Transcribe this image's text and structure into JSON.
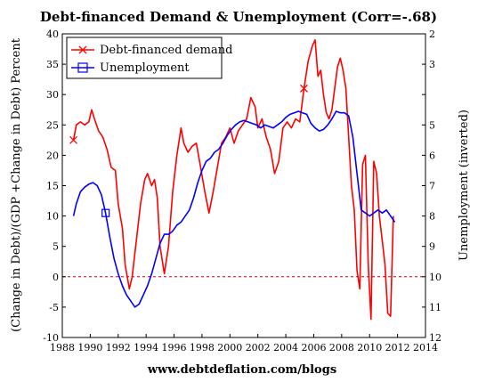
{
  "chart_data": {
    "type": "line",
    "title": "Debt-financed Demand & Unemployment (Corr=-.68)",
    "xlabel": "",
    "ylabel": "(Change in Debt)/(GDP +Change in Debt) Percent",
    "y2label": "Unemployment (inverted)",
    "footer": "www.debtdeflation.com/blogs",
    "xlim": [
      1988,
      2014
    ],
    "ylim": [
      -10,
      40
    ],
    "y2lim": [
      12,
      2
    ],
    "y2_inverted": true,
    "x_ticks": [
      1988,
      1990,
      1992,
      1994,
      1996,
      1998,
      2000,
      2002,
      2004,
      2006,
      2008,
      2010,
      2012,
      2014
    ],
    "y_ticks": [
      -10,
      -5,
      0,
      5,
      10,
      15,
      20,
      25,
      30,
      35,
      40
    ],
    "y2_ticks": [
      2,
      3,
      4,
      5,
      6,
      7,
      8,
      9,
      10,
      11,
      12
    ],
    "y2_tick_labels": [
      "2",
      "3",
      "",
      "5",
      "6",
      "7",
      "8",
      "9",
      "10",
      "11",
      "12"
    ],
    "legend_position": "top-left",
    "grid": false,
    "zero_line": {
      "y": 0,
      "color": "#cc0000",
      "style": "dashed"
    },
    "series": [
      {
        "name": "Debt-financed demand",
        "axis": "left",
        "color": "#ff0000",
        "marker": "x",
        "x": [
          1988.8,
          1989.0,
          1989.3,
          1989.6,
          1989.9,
          1990.1,
          1990.3,
          1990.6,
          1990.9,
          1991.2,
          1991.5,
          1991.8,
          1992.0,
          1992.3,
          1992.5,
          1992.8,
          1993.0,
          1993.3,
          1993.6,
          1993.9,
          1994.1,
          1994.4,
          1994.6,
          1994.8,
          1995.0,
          1995.3,
          1995.6,
          1995.9,
          1996.2,
          1996.5,
          1996.7,
          1997.0,
          1997.3,
          1997.6,
          1997.9,
          1998.2,
          1998.5,
          1998.8,
          1999.1,
          1999.4,
          1999.7,
          2000.0,
          2000.3,
          2000.6,
          2000.9,
          2001.2,
          2001.5,
          2001.8,
          2002.0,
          2002.3,
          2002.6,
          2002.9,
          2003.2,
          2003.5,
          2003.8,
          2004.1,
          2004.4,
          2004.7,
          2005.0,
          2005.3,
          2005.6,
          2005.9,
          2006.1,
          2006.3,
          2006.5,
          2006.7,
          2006.9,
          2007.1,
          2007.3,
          2007.5,
          2007.7,
          2007.9,
          2008.1,
          2008.3,
          2008.5,
          2008.7,
          2008.9,
          2009.1,
          2009.3,
          2009.5,
          2009.7,
          2009.9,
          2010.1,
          2010.3,
          2010.5,
          2010.7,
          2010.9,
          2011.1,
          2011.3,
          2011.5,
          2011.7
        ],
        "values": [
          22.5,
          25,
          25.5,
          25,
          25.5,
          27.5,
          26,
          24,
          23,
          21,
          18,
          17.5,
          12,
          8,
          2,
          -2,
          0,
          6,
          12,
          16,
          17,
          15,
          16,
          13,
          5,
          0.5,
          5,
          14,
          20,
          24.5,
          22,
          20.5,
          21.5,
          22,
          18,
          14,
          10.5,
          14,
          18,
          22,
          23,
          24.5,
          22,
          24,
          25,
          26,
          29.5,
          28,
          24.5,
          26,
          23,
          21,
          17,
          19,
          24.5,
          25.5,
          24.5,
          26,
          25.5,
          31,
          35.5,
          38,
          39,
          33,
          34,
          30,
          27,
          26,
          27.5,
          31,
          34.5,
          36,
          34,
          31,
          23,
          15,
          11,
          1,
          -2,
          18.5,
          20,
          2,
          -7,
          19,
          17,
          10,
          6,
          2,
          -6,
          -6.5,
          10
        ],
        "marker_at": [
          0,
          59
        ]
      },
      {
        "name": "Unemployment",
        "axis": "right",
        "color": "#0000ff",
        "marker": "square",
        "x": [
          1988.8,
          1989.0,
          1989.3,
          1989.6,
          1989.9,
          1990.2,
          1990.5,
          1990.8,
          1991.1,
          1991.4,
          1991.7,
          1992.0,
          1992.3,
          1992.6,
          1992.9,
          1993.2,
          1993.5,
          1993.8,
          1994.1,
          1994.4,
          1994.7,
          1995.0,
          1995.3,
          1995.6,
          1995.9,
          1996.2,
          1996.5,
          1996.8,
          1997.1,
          1997.4,
          1997.7,
          1998.0,
          1998.3,
          1998.6,
          1998.9,
          1999.2,
          1999.5,
          1999.8,
          2000.1,
          2000.4,
          2000.7,
          2001.0,
          2001.3,
          2001.6,
          2001.9,
          2002.2,
          2002.5,
          2002.8,
          2003.1,
          2003.4,
          2003.7,
          2004.0,
          2004.3,
          2004.6,
          2004.9,
          2005.2,
          2005.5,
          2005.8,
          2006.1,
          2006.4,
          2006.7,
          2007.0,
          2007.3,
          2007.6,
          2007.9,
          2008.2,
          2008.5,
          2008.8,
          2009.1,
          2009.4,
          2009.7,
          2010.0,
          2010.3,
          2010.6,
          2010.9,
          2011.2,
          2011.5,
          2011.8
        ],
        "values": [
          8.0,
          7.6,
          7.2,
          7.05,
          6.95,
          6.9,
          7.0,
          7.3,
          7.9,
          8.7,
          9.4,
          9.9,
          10.3,
          10.6,
          10.8,
          11.0,
          10.9,
          10.6,
          10.3,
          9.9,
          9.4,
          8.9,
          8.6,
          8.6,
          8.5,
          8.3,
          8.2,
          8.0,
          7.8,
          7.4,
          6.9,
          6.5,
          6.2,
          6.1,
          5.9,
          5.8,
          5.6,
          5.35,
          5.15,
          5.0,
          4.9,
          4.85,
          4.9,
          4.95,
          5.0,
          5.1,
          5.0,
          5.05,
          5.1,
          5.0,
          4.9,
          4.75,
          4.65,
          4.6,
          4.55,
          4.6,
          4.65,
          4.95,
          5.1,
          5.2,
          5.15,
          5.0,
          4.8,
          4.55,
          4.6,
          4.6,
          4.7,
          5.4,
          6.6,
          7.8,
          7.9,
          8.0,
          7.9,
          7.8,
          7.9,
          7.8,
          8.0,
          8.2
        ],
        "marker_at": [
          8
        ]
      }
    ]
  }
}
